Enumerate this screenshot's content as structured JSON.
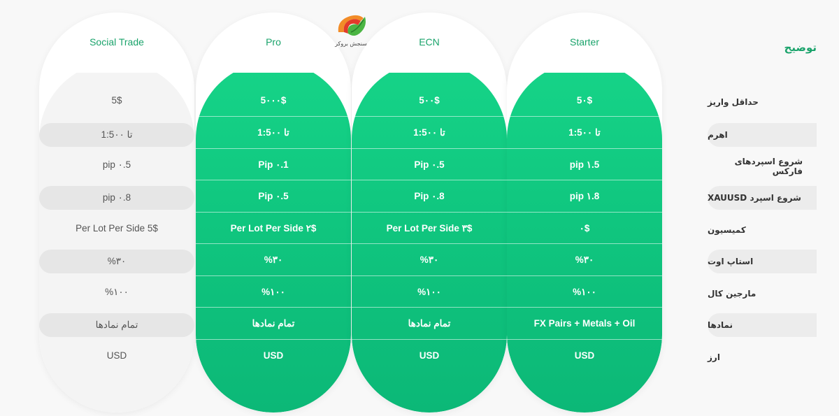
{
  "description": {
    "title": "توضیح",
    "rows": [
      "حداقل واریز",
      "اهرم",
      "شروع اسپردهای فارکس",
      "شروع اسپرد XAUUSD",
      "کمیسیون",
      "استاپ اوت",
      "مارجین کال",
      "نمادها",
      "ارز"
    ]
  },
  "logo": {
    "caption": "سنجش بروکر"
  },
  "accounts": [
    {
      "name": "Social Trade",
      "style": "grey",
      "values": [
        "5$",
        "تا 1:5۰۰",
        "pip ۰.5",
        "pip ۰.8",
        "Per Lot Per Side 5$",
        "%۳۰",
        "%۱۰۰",
        "تمام نمادها",
        "USD"
      ]
    },
    {
      "name": "Pro",
      "style": "green",
      "values": [
        "5۰۰۰$",
        "تا 1:5۰۰",
        "Pip ۰.1",
        "Pip ۰.5",
        "Per Lot Per Side ۲$",
        "%۳۰",
        "%۱۰۰",
        "تمام نمادها",
        "USD"
      ]
    },
    {
      "name": "ECN",
      "style": "green",
      "values": [
        "5۰۰$",
        "تا 1:5۰۰",
        "Pip ۰.5",
        "Pip ۰.8",
        "Per Lot Per Side ۳$",
        "%۳۰",
        "%۱۰۰",
        "تمام نمادها",
        "USD"
      ]
    },
    {
      "name": "Starter",
      "style": "green",
      "values": [
        "5۰$",
        "تا 1:5۰۰",
        "pip ۱.5",
        "pip ۱.8",
        "۰$",
        "%۳۰",
        "%۱۰۰",
        "FX Pairs + Metals + Oil",
        "USD"
      ]
    }
  ]
}
